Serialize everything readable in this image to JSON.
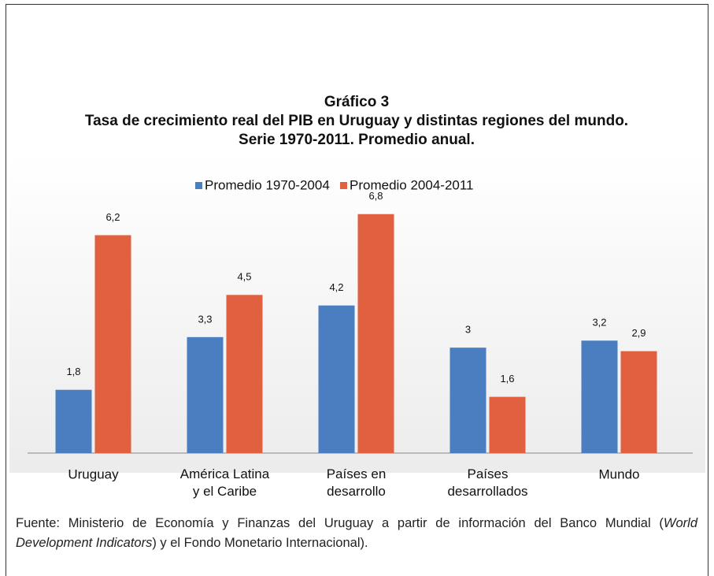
{
  "chart_data": {
    "type": "bar",
    "title": [
      "Gráfico 3",
      "Tasa de crecimiento real del PIB en Uruguay y distintas regiones del mundo.",
      "Serie 1970-2011. Promedio anual."
    ],
    "categories": [
      "Uruguay",
      "América Latina\ny el Caribe",
      "Países en\ndesarrollo",
      "Países\ndesarrollados",
      "Mundo"
    ],
    "series": [
      {
        "name": "Promedio 1970-2004",
        "color": "#4a7ec0",
        "values": [
          1.8,
          3.3,
          4.2,
          3,
          3.2
        ],
        "value_labels": [
          "1,8",
          "3,3",
          "4,2",
          "3",
          "3,2"
        ]
      },
      {
        "name": "Promedio 2004-2011",
        "color": "#e0603f",
        "values": [
          6.2,
          4.5,
          6.8,
          1.6,
          2.9
        ],
        "value_labels": [
          "6,2",
          "4,5",
          "6,8",
          "1,6",
          "2,9"
        ]
      }
    ],
    "legend": "top"
  },
  "source": {
    "before": "Fuente: Ministerio de Economía y Finanzas del Uruguay a partir de información del Banco Mundial (",
    "italic": "World Development Indicators",
    "after": ") y el Fondo Monetario Internacional)."
  }
}
